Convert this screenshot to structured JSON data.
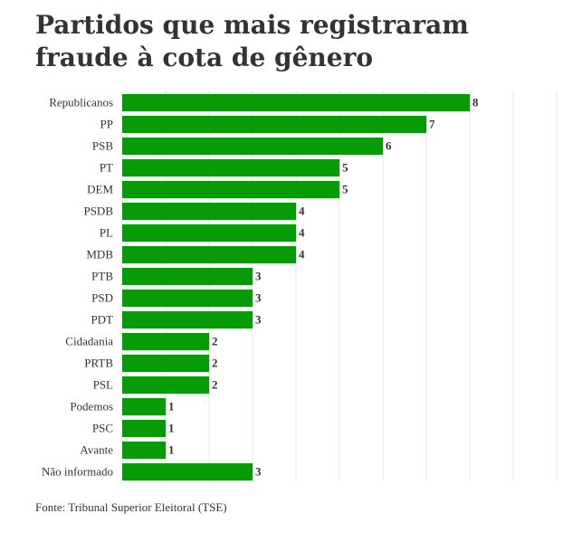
{
  "title": "Partidos que mais registraram fraude à cota de gênero",
  "source": "Fonte: Tribunal Superior Eleitoral (TSE)",
  "colors": {
    "bar": "#079c07",
    "grid": "#e6e6e6",
    "text": "#333333"
  },
  "chart_data": {
    "type": "bar",
    "orientation": "horizontal",
    "title": "Partidos que mais registraram fraude à cota de gênero",
    "xlabel": "",
    "ylabel": "",
    "xlim": [
      0,
      10
    ],
    "grid": true,
    "categories": [
      "Republicanos",
      "PP",
      "PSB",
      "PT",
      "DEM",
      "PSDB",
      "PL",
      "MDB",
      "PTB",
      "PSD",
      "PDT",
      "Cidadania",
      "PRTB",
      "PSL",
      "Podemos",
      "PSC",
      "Avante",
      "Não informado"
    ],
    "values": [
      8,
      7,
      6,
      5,
      5,
      4,
      4,
      4,
      3,
      3,
      3,
      2,
      2,
      2,
      1,
      1,
      1,
      3
    ]
  }
}
